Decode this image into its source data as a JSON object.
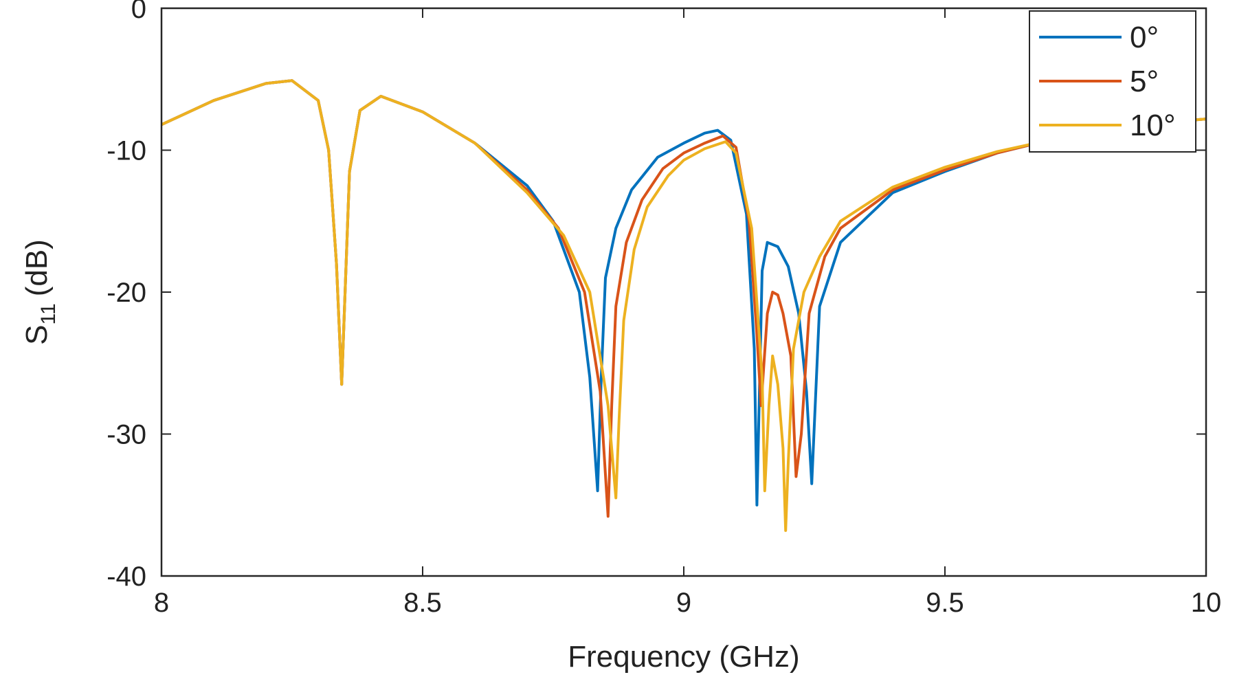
{
  "chart_data": {
    "type": "line",
    "title": "",
    "xlabel": "Frequency (GHz)",
    "ylabel": "S",
    "ylabel_sub": "11",
    "ylabel_unit": "(dB)",
    "xlim": [
      8,
      10
    ],
    "ylim": [
      -40,
      0
    ],
    "xticks": [
      8,
      8.5,
      9,
      9.5,
      10
    ],
    "yticks": [
      0,
      -10,
      -20,
      -30,
      -40
    ],
    "xtick_labels": [
      "8",
      "8.5",
      "9",
      "9.5",
      "10"
    ],
    "ytick_labels": [
      "0",
      "-10",
      "-20",
      "-30",
      "-40"
    ],
    "grid": false,
    "legend_position": "top-right",
    "series": [
      {
        "name": "0°",
        "color": "#0072BD",
        "x": [
          8.0,
          8.1,
          8.2,
          8.25,
          8.3,
          8.32,
          8.335,
          8.345,
          8.36,
          8.38,
          8.42,
          8.5,
          8.6,
          8.7,
          8.75,
          8.8,
          8.82,
          8.835,
          8.842,
          8.85,
          8.87,
          8.9,
          8.95,
          9.0,
          9.04,
          9.065,
          9.09,
          9.12,
          9.135,
          9.14,
          9.15,
          9.16,
          9.18,
          9.2,
          9.22,
          9.235,
          9.245,
          9.26,
          9.3,
          9.4,
          9.5,
          9.6,
          9.7,
          9.8,
          9.9,
          10.0
        ],
        "y": [
          -8.2,
          -6.5,
          -5.3,
          -5.1,
          -6.5,
          -10.0,
          -18.0,
          -26.5,
          -11.5,
          -7.2,
          -6.2,
          -7.3,
          -9.5,
          -12.5,
          -15.0,
          -20.0,
          -26.0,
          -34.0,
          -26.0,
          -19.0,
          -15.5,
          -12.8,
          -10.5,
          -9.5,
          -8.8,
          -8.6,
          -9.3,
          -14.5,
          -24.0,
          -35.0,
          -18.5,
          -16.5,
          -16.8,
          -18.2,
          -21.5,
          -27.0,
          -33.5,
          -21.0,
          -16.5,
          -13.0,
          -11.5,
          -10.2,
          -9.3,
          -8.6,
          -8.1,
          -7.8
        ]
      },
      {
        "name": "5°",
        "color": "#D95319",
        "x": [
          8.0,
          8.1,
          8.2,
          8.25,
          8.3,
          8.32,
          8.335,
          8.345,
          8.36,
          8.38,
          8.42,
          8.5,
          8.6,
          8.7,
          8.76,
          8.81,
          8.84,
          8.855,
          8.862,
          8.87,
          8.89,
          8.92,
          8.96,
          9.0,
          9.04,
          9.075,
          9.1,
          9.125,
          9.14,
          9.148,
          9.16,
          9.17,
          9.18,
          9.19,
          9.205,
          9.215,
          9.225,
          9.24,
          9.27,
          9.3,
          9.4,
          9.5,
          9.6,
          9.7,
          9.8,
          9.9,
          10.0
        ],
        "y": [
          -8.2,
          -6.5,
          -5.3,
          -5.1,
          -6.5,
          -10.0,
          -18.0,
          -26.5,
          -11.5,
          -7.2,
          -6.2,
          -7.3,
          -9.5,
          -12.8,
          -15.5,
          -20.0,
          -27.0,
          -35.8,
          -28.0,
          -21.0,
          -16.5,
          -13.5,
          -11.3,
          -10.2,
          -9.5,
          -9.0,
          -9.8,
          -15.0,
          -23.0,
          -28.0,
          -21.5,
          -20.0,
          -20.2,
          -21.5,
          -24.5,
          -33.0,
          -30.0,
          -21.5,
          -17.5,
          -15.5,
          -12.8,
          -11.4,
          -10.2,
          -9.3,
          -8.6,
          -8.1,
          -7.8
        ]
      },
      {
        "name": "10°",
        "color": "#EDB120",
        "x": [
          8.0,
          8.1,
          8.2,
          8.25,
          8.3,
          8.32,
          8.335,
          8.345,
          8.36,
          8.38,
          8.42,
          8.5,
          8.6,
          8.7,
          8.77,
          8.82,
          8.855,
          8.87,
          8.876,
          8.885,
          8.905,
          8.93,
          8.97,
          9.0,
          9.04,
          9.08,
          9.1,
          9.13,
          9.15,
          9.155,
          9.163,
          9.17,
          9.175,
          9.18,
          9.19,
          9.195,
          9.2,
          9.21,
          9.23,
          9.26,
          9.3,
          9.4,
          9.5,
          9.6,
          9.7,
          9.8,
          9.9,
          10.0
        ],
        "y": [
          -8.2,
          -6.5,
          -5.3,
          -5.1,
          -6.5,
          -10.0,
          -18.0,
          -26.5,
          -11.5,
          -7.2,
          -6.2,
          -7.3,
          -9.5,
          -13.0,
          -16.0,
          -20.0,
          -28.0,
          -34.5,
          -29.0,
          -22.0,
          -17.0,
          -14.0,
          -11.8,
          -10.7,
          -9.9,
          -9.4,
          -10.2,
          -15.5,
          -26.0,
          -34.0,
          -28.0,
          -24.5,
          -25.5,
          -26.5,
          -31.0,
          -36.8,
          -32.0,
          -24.0,
          -20.0,
          -17.5,
          -15.0,
          -12.6,
          -11.2,
          -10.1,
          -9.3,
          -8.6,
          -8.1,
          -7.8
        ]
      }
    ]
  }
}
